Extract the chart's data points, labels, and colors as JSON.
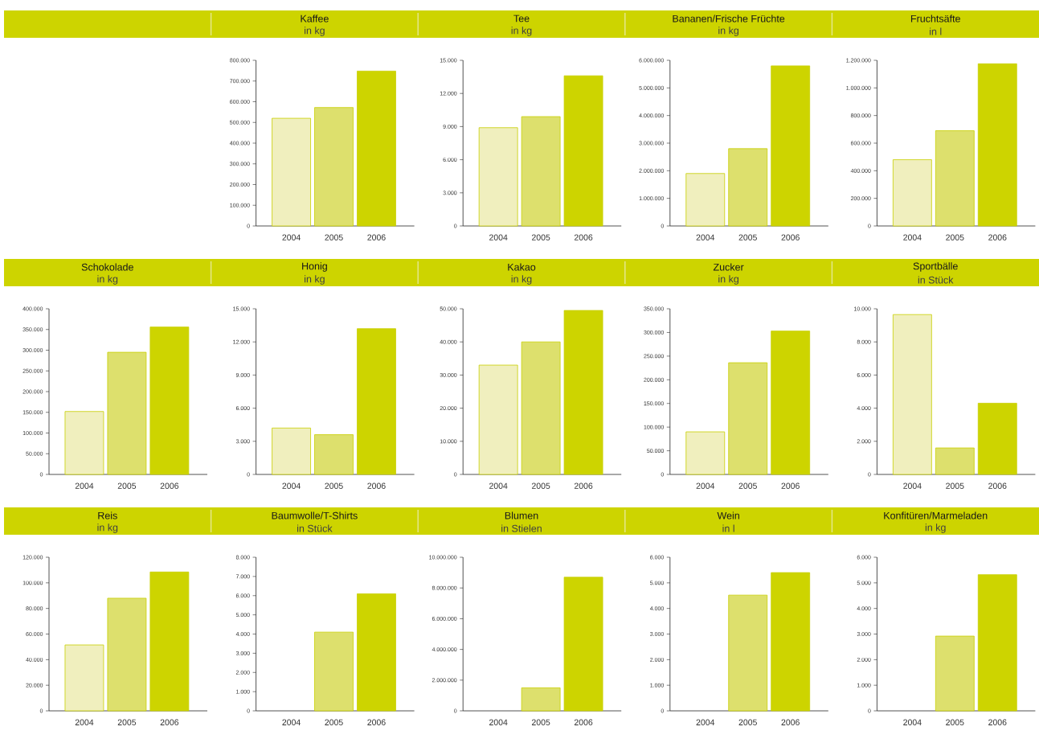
{
  "chart_data": [
    {
      "type": "bar",
      "title": "Kaffee",
      "subtitle": "in kg",
      "categories": [
        "2004",
        "2005",
        "2006"
      ],
      "values": [
        520000,
        572000,
        748000
      ],
      "colors": [
        "#f0efbe",
        "#dde06d",
        "#cdd400"
      ],
      "ylim": [
        0,
        800000
      ],
      "yticks": [
        0,
        {
          "value": 100000,
          "label": "100.000"
        },
        {
          "value": 200000,
          "label": "200.000"
        },
        {
          "value": 300000,
          "label": "300.000"
        },
        {
          "value": 400000,
          "label": "400.000"
        },
        {
          "value": 500000,
          "label": "500.000"
        },
        {
          "value": 600000,
          "label": "600.000"
        },
        {
          "value": 700000,
          "label": "700.000"
        },
        {
          "value": 800000,
          "label": "800.000"
        }
      ]
    },
    {
      "type": "bar",
      "title": "Tee",
      "subtitle": "in kg",
      "categories": [
        "2004",
        "2005",
        "2006"
      ],
      "values": [
        8900,
        9900,
        13600
      ],
      "colors": [
        "#f0efbe",
        "#dde06d",
        "#cdd400"
      ],
      "ylim": [
        0,
        15000
      ],
      "yticks": [
        0,
        {
          "value": 3000,
          "label": "3.000"
        },
        {
          "value": 6000,
          "label": "6.000"
        },
        {
          "value": 9000,
          "label": "9.000"
        },
        {
          "value": 12000,
          "label": "12.000"
        },
        {
          "value": 15000,
          "label": "15.000"
        }
      ]
    },
    {
      "type": "bar",
      "title": "Bananen/Frische Früchte",
      "subtitle": "in kg",
      "categories": [
        "2004",
        "2005",
        "2006"
      ],
      "values": [
        1900000,
        2800000,
        5800000
      ],
      "colors": [
        "#f0efbe",
        "#dde06d",
        "#cdd400"
      ],
      "ylim": [
        0,
        6000000
      ],
      "yticks": [
        0,
        {
          "value": 1000000,
          "label": "1.000.000"
        },
        {
          "value": 2000000,
          "label": "2.000.000"
        },
        {
          "value": 3000000,
          "label": "3.000.000"
        },
        {
          "value": 4000000,
          "label": "4.000.000"
        },
        {
          "value": 5000000,
          "label": "5.000.000"
        },
        {
          "value": 6000000,
          "label": "6.000.000"
        }
      ]
    },
    {
      "type": "bar",
      "title": "Fruchtsäfte",
      "subtitle": "in l",
      "categories": [
        "2004",
        "2005",
        "2006"
      ],
      "values": [
        480000,
        690000,
        1175000
      ],
      "colors": [
        "#f0efbe",
        "#dde06d",
        "#cdd400"
      ],
      "ylim": [
        0,
        1200000
      ],
      "yticks": [
        0,
        {
          "value": 200000,
          "label": "200.000"
        },
        {
          "value": 400000,
          "label": "400.000"
        },
        {
          "value": 600000,
          "label": "600.000"
        },
        {
          "value": 800000,
          "label": "800.000"
        },
        {
          "value": 1000000,
          "label": "1.000.000"
        },
        {
          "value": 1200000,
          "label": "1.200.000"
        }
      ]
    },
    {
      "type": "bar",
      "title": "Schokolade",
      "subtitle": "in kg",
      "categories": [
        "2004",
        "2005",
        "2006"
      ],
      "values": [
        152000,
        295000,
        356000
      ],
      "colors": [
        "#f0efbe",
        "#dde06d",
        "#cdd400"
      ],
      "ylim": [
        0,
        400000
      ],
      "yticks": [
        0,
        {
          "value": 50000,
          "label": "50.000"
        },
        {
          "value": 100000,
          "label": "100.000"
        },
        {
          "value": 150000,
          "label": "150.000"
        },
        {
          "value": 200000,
          "label": "200.000"
        },
        {
          "value": 250000,
          "label": "250.000"
        },
        {
          "value": 300000,
          "label": "300.000"
        },
        {
          "value": 350000,
          "label": "350.000"
        },
        {
          "value": 400000,
          "label": "400.000"
        }
      ]
    },
    {
      "type": "bar",
      "title": "Honig",
      "subtitle": "in kg",
      "categories": [
        "2004",
        "2005",
        "2006"
      ],
      "values": [
        4200,
        3600,
        13200
      ],
      "colors": [
        "#f0efbe",
        "#dde06d",
        "#cdd400"
      ],
      "ylim": [
        0,
        15000
      ],
      "yticks": [
        0,
        {
          "value": 3000,
          "label": "3.000"
        },
        {
          "value": 6000,
          "label": "6.000"
        },
        {
          "value": 9000,
          "label": "9.000"
        },
        {
          "value": 12000,
          "label": "12.000"
        },
        {
          "value": 15000,
          "label": "15.000"
        }
      ]
    },
    {
      "type": "bar",
      "title": "Kakao",
      "subtitle": "in kg",
      "categories": [
        "2004",
        "2005",
        "2006"
      ],
      "values": [
        33000,
        40000,
        49500
      ],
      "colors": [
        "#f0efbe",
        "#dde06d",
        "#cdd400"
      ],
      "ylim": [
        0,
        50000
      ],
      "yticks": [
        0,
        {
          "value": 10000,
          "label": "10.000"
        },
        {
          "value": 20000,
          "label": "20.000"
        },
        {
          "value": 30000,
          "label": "30.000"
        },
        {
          "value": 40000,
          "label": "40.000"
        },
        {
          "value": 50000,
          "label": "50.000"
        }
      ]
    },
    {
      "type": "bar",
      "title": "Zucker",
      "subtitle": "in kg",
      "categories": [
        "2004",
        "2005",
        "2006"
      ],
      "values": [
        90000,
        236000,
        303000
      ],
      "colors": [
        "#f0efbe",
        "#dde06d",
        "#cdd400"
      ],
      "ylim": [
        0,
        350000
      ],
      "yticks": [
        0,
        {
          "value": 50000,
          "label": "50.000"
        },
        {
          "value": 100000,
          "label": "100.000"
        },
        {
          "value": 150000,
          "label": "150.000"
        },
        {
          "value": 200000,
          "label": "200.000"
        },
        {
          "value": 250000,
          "label": "250.000"
        },
        {
          "value": 300000,
          "label": "300.000"
        },
        {
          "value": 350000,
          "label": "350.000"
        }
      ]
    },
    {
      "type": "bar",
      "title": "Sportbälle",
      "subtitle": "in Stück",
      "categories": [
        "2004",
        "2005",
        "2006"
      ],
      "values": [
        9650,
        1600,
        4300
      ],
      "colors": [
        "#f0efbe",
        "#dde06d",
        "#cdd400"
      ],
      "ylim": [
        0,
        10000
      ],
      "yticks": [
        0,
        {
          "value": 2000,
          "label": "2.000"
        },
        {
          "value": 4000,
          "label": "4.000"
        },
        {
          "value": 6000,
          "label": "6.000"
        },
        {
          "value": 8000,
          "label": "8.000"
        },
        {
          "value": 10000,
          "label": "10.000"
        }
      ]
    },
    {
      "type": "bar",
      "title": "Reis",
      "subtitle": "in kg",
      "categories": [
        "2004",
        "2005",
        "2006"
      ],
      "values": [
        51500,
        88000,
        108500
      ],
      "colors": [
        "#f0efbe",
        "#dde06d",
        "#cdd400"
      ],
      "ylim": [
        0,
        120000
      ],
      "yticks": [
        0,
        {
          "value": 20000,
          "label": "20.000"
        },
        {
          "value": 40000,
          "label": "40.000"
        },
        {
          "value": 60000,
          "label": "60.000"
        },
        {
          "value": 80000,
          "label": "80.000"
        },
        {
          "value": 100000,
          "label": "100.000"
        },
        {
          "value": 120000,
          "label": "120.000"
        }
      ]
    },
    {
      "type": "bar",
      "title": "Baumwolle/T-Shirts",
      "subtitle": "in Stück",
      "categories": [
        "2004",
        "2005",
        "2006"
      ],
      "values": [
        null,
        4100,
        6100
      ],
      "colors": [
        "#f0efbe",
        "#dde06d",
        "#cdd400"
      ],
      "ylim": [
        0,
        8000
      ],
      "yticks": [
        0,
        {
          "value": 1000,
          "label": "1.000"
        },
        {
          "value": 2000,
          "label": "2.000"
        },
        {
          "value": 3000,
          "label": "3.000"
        },
        {
          "value": 4000,
          "label": "4.000"
        },
        {
          "value": 5000,
          "label": "5.000"
        },
        {
          "value": 6000,
          "label": "6.000"
        },
        {
          "value": 7000,
          "label": "7.000"
        },
        {
          "value": 8000,
          "label": "8.000"
        }
      ]
    },
    {
      "type": "bar",
      "title": "Blumen",
      "subtitle": "in Stielen",
      "categories": [
        "2004",
        "2005",
        "2006"
      ],
      "values": [
        null,
        1500000,
        8700000
      ],
      "colors": [
        "#f0efbe",
        "#dde06d",
        "#cdd400"
      ],
      "ylim": [
        0,
        10000000
      ],
      "yticks": [
        0,
        {
          "value": 2000000,
          "label": "2.000.000"
        },
        {
          "value": 4000000,
          "label": "4.000.000"
        },
        {
          "value": 6000000,
          "label": "6.000.000"
        },
        {
          "value": 8000000,
          "label": "8.000.000"
        },
        {
          "value": 10000000,
          "label": "10.000.000"
        }
      ]
    },
    {
      "type": "bar",
      "title": "Wein",
      "subtitle": "in l",
      "categories": [
        "2004",
        "2005",
        "2006"
      ],
      "values": [
        null,
        4520,
        5400
      ],
      "colors": [
        "#f0efbe",
        "#dde06d",
        "#cdd400"
      ],
      "ylim": [
        0,
        6000
      ],
      "yticks": [
        0,
        {
          "value": 1000,
          "label": "1.000"
        },
        {
          "value": 2000,
          "label": "2.000"
        },
        {
          "value": 3000,
          "label": "3.000"
        },
        {
          "value": 4000,
          "label": "4.000"
        },
        {
          "value": 5000,
          "label": "5.000"
        },
        {
          "value": 6000,
          "label": "6.000"
        }
      ]
    },
    {
      "type": "bar",
      "title": "Konfitüren/Marmeladen",
      "subtitle": "in kg",
      "categories": [
        "2004",
        "2005",
        "2006"
      ],
      "values": [
        null,
        2920,
        5320
      ],
      "colors": [
        "#f0efbe",
        "#dde06d",
        "#cdd400"
      ],
      "ylim": [
        0,
        6000
      ],
      "yticks": [
        0,
        {
          "value": 1000,
          "label": "1.000"
        },
        {
          "value": 2000,
          "label": "2.000"
        },
        {
          "value": 3000,
          "label": "3.000"
        },
        {
          "value": 4000,
          "label": "4.000"
        },
        {
          "value": 5000,
          "label": "5.000"
        },
        {
          "value": 6000,
          "label": "6.000"
        }
      ]
    }
  ]
}
